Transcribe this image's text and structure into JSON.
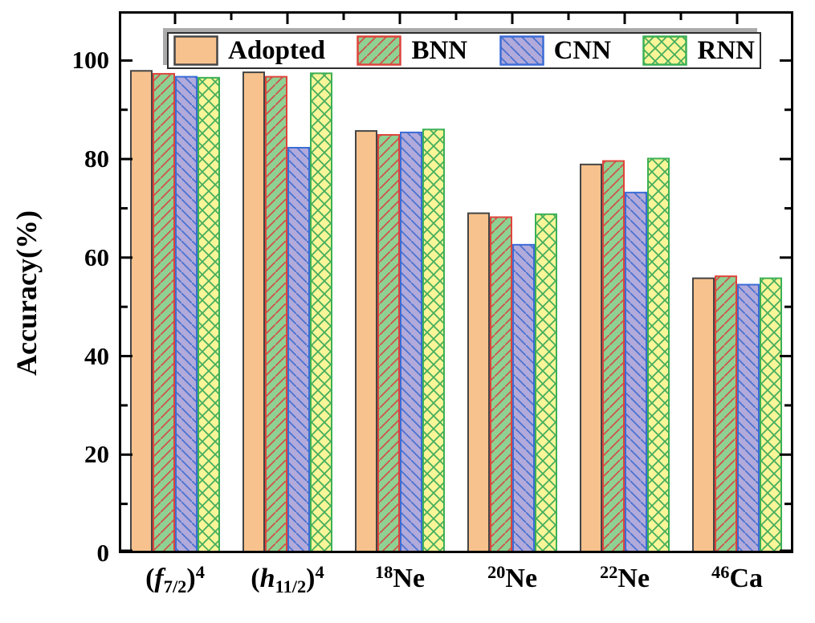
{
  "figure": {
    "background": "#ffffff",
    "frame_color": "#000000",
    "tick_color": "#000000"
  },
  "chart_data": {
    "type": "bar",
    "title": "",
    "xlabel": "",
    "ylabel": "Accuracy(%)",
    "ylim": [
      0,
      110
    ],
    "y_major_ticks": [
      0,
      20,
      40,
      60,
      80,
      100
    ],
    "y_minor_ticks": [
      10,
      30,
      50,
      70,
      90
    ],
    "grid": false,
    "legend_position": "top-inside",
    "categories": [
      "(f7/2)^4",
      "(h11/2)^4",
      "18Ne",
      "20Ne",
      "22Ne",
      "46Ca"
    ],
    "category_parts": [
      [
        {
          "t": "("
        },
        {
          "t": "f",
          "i": true
        },
        {
          "t": "7/2",
          "v": "sub"
        },
        {
          "t": ")"
        },
        {
          "t": "4",
          "v": "sup"
        }
      ],
      [
        {
          "t": "("
        },
        {
          "t": "h",
          "i": true
        },
        {
          "t": "11/2",
          "v": "sub"
        },
        {
          "t": ")"
        },
        {
          "t": "4",
          "v": "sup"
        }
      ],
      [
        {
          "t": "18",
          "v": "sup"
        },
        {
          "t": "Ne"
        }
      ],
      [
        {
          "t": "20",
          "v": "sup"
        },
        {
          "t": "Ne"
        }
      ],
      [
        {
          "t": "22",
          "v": "sup"
        },
        {
          "t": "Ne"
        }
      ],
      [
        {
          "t": "46",
          "v": "sup"
        },
        {
          "t": "Ca"
        }
      ]
    ],
    "series": [
      {
        "name": "Adopted",
        "fill": "#f7c28d",
        "border": "#454545",
        "hatch": "none",
        "hatch_color": null,
        "values": [
          97.9,
          97.6,
          85.7,
          69.0,
          78.9,
          55.8
        ]
      },
      {
        "name": "BNN",
        "fill": "#8fd193",
        "border": "#de453c",
        "hatch": "forward",
        "hatch_color": "#cf5349",
        "values": [
          97.3,
          96.7,
          84.9,
          68.2,
          79.6,
          56.2
        ]
      },
      {
        "name": "CNN",
        "fill": "#b1aadb",
        "border": "#3b6cd6",
        "hatch": "backward",
        "hatch_color": "#4a72d0",
        "values": [
          96.7,
          82.3,
          85.4,
          62.6,
          73.2,
          54.5
        ]
      },
      {
        "name": "RNN",
        "fill": "#f9f598",
        "border": "#3cb055",
        "hatch": "cross",
        "hatch_color": "#45ae5c",
        "values": [
          96.5,
          97.4,
          86.0,
          68.8,
          80.1,
          55.8
        ]
      }
    ]
  }
}
